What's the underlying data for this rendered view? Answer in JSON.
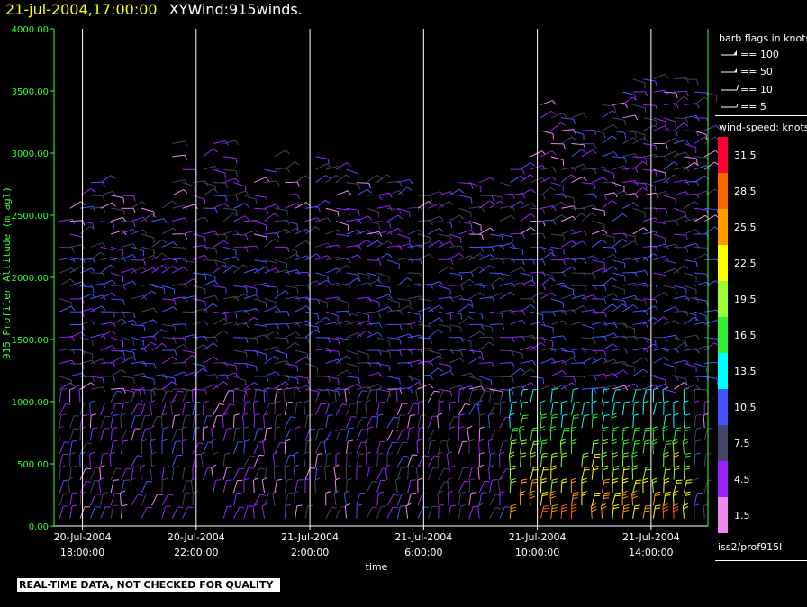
{
  "header": {
    "datetime": "21-jul-2004,17:00:00",
    "title": "XYWind:915winds."
  },
  "quality_note": "REAL-TIME DATA, NOT CHECKED FOR QUALITY",
  "legend": {
    "barb_title": "barb flags in knots",
    "barb_items": [
      {
        "label": "== 100",
        "knots": 100
      },
      {
        "label": "== 50",
        "knots": 50
      },
      {
        "label": "== 10",
        "knots": 10
      },
      {
        "label": "== 5",
        "knots": 5
      }
    ],
    "speed_title": "wind-speed: knots",
    "speed_scale": [
      {
        "label": "31.5",
        "color": "#ff0033"
      },
      {
        "label": "28.5",
        "color": "#ff6600"
      },
      {
        "label": "25.5",
        "color": "#ff9900"
      },
      {
        "label": "22.5",
        "color": "#ffff00"
      },
      {
        "label": "19.5",
        "color": "#99ff33"
      },
      {
        "label": "16.5",
        "color": "#33ee33"
      },
      {
        "label": "13.5",
        "color": "#00ffff"
      },
      {
        "label": "10.5",
        "color": "#4455ff"
      },
      {
        "label": "7.5",
        "color": "#444466"
      },
      {
        "label": "4.5",
        "color": "#9922ff"
      },
      {
        "label": "1.5",
        "color": "#ee88ee"
      }
    ]
  },
  "footer_id": "iss2/prof915l",
  "colors": {
    "y_axis": "#33ff33",
    "x_axis": "#ffffff",
    "gridline": "#ffffff"
  },
  "chart_data": {
    "type": "wind_barb_time_height",
    "xlabel": "time",
    "ylabel": "915 Profiler Altitude (m agl)",
    "ylim": [
      0,
      4000
    ],
    "y_ticks": [
      "0.00",
      "500.00",
      "1000.00",
      "1500.00",
      "2000.00",
      "2500.00",
      "3000.00",
      "3500.00",
      "4000.00"
    ],
    "x_range_hours": [
      -1.0,
      22.0
    ],
    "x_ticks": [
      {
        "date": "20-Jul-2004",
        "time": "18:00:00",
        "hour": 0
      },
      {
        "date": "20-Jul-2004",
        "time": "22:00:00",
        "hour": 4
      },
      {
        "date": "21-Jul-2004",
        "time": "2:00:00",
        "hour": 8
      },
      {
        "date": "21-Jul-2004",
        "time": "6:00:00",
        "hour": 12
      },
      {
        "date": "21-Jul-2004",
        "time": "10:00:00",
        "hour": 16
      },
      {
        "date": "21-Jul-2004",
        "time": "14:00:00",
        "hour": 20
      }
    ],
    "grid": "vertical at time ticks",
    "legend_position": "right",
    "note": "barb field is dense; wind speeds mostly 1.5-10.5 knots, with 13.5-31.5 knots near the surface from about 21-Jul 10:00 to 16:00"
  }
}
